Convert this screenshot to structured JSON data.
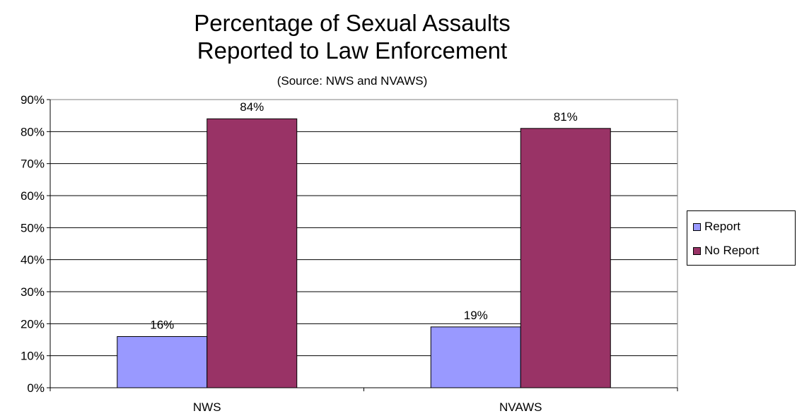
{
  "chart_data": {
    "type": "bar",
    "title_lines": [
      "Percentage of Sexual Assaults",
      "Reported to Law Enforcement"
    ],
    "subtitle": "(Source:  NWS and NVAWS)",
    "categories": [
      "NWS",
      "NVAWS"
    ],
    "series": [
      {
        "name": "Report",
        "values": [
          16,
          19
        ],
        "labels": [
          "16%",
          "19%"
        ],
        "color": "#9999ff"
      },
      {
        "name": "No Report",
        "values": [
          84,
          81
        ],
        "labels": [
          "84%",
          "81%"
        ],
        "color": "#993366"
      }
    ],
    "ylim": [
      0,
      90
    ],
    "yticks": [
      0,
      10,
      20,
      30,
      40,
      50,
      60,
      70,
      80,
      90
    ],
    "ytick_labels": [
      "0%",
      "10%",
      "20%",
      "30%",
      "40%",
      "50%",
      "60%",
      "70%",
      "80%",
      "90%"
    ],
    "xlabel": "",
    "ylabel": "",
    "grid": true,
    "legend_position": "right"
  }
}
